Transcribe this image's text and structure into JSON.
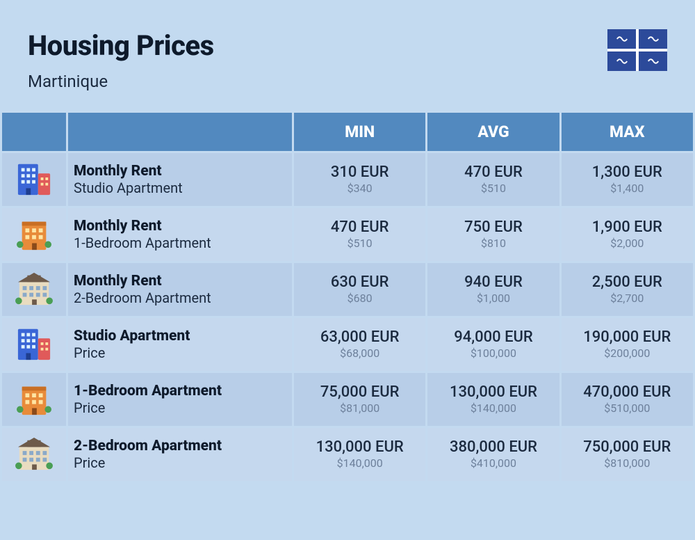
{
  "header": {
    "title": "Housing Prices",
    "subtitle": "Martinique"
  },
  "columns": [
    "MIN",
    "AVG",
    "MAX"
  ],
  "colors": {
    "page_bg": "#c3daf0",
    "header_bg": "#5289bf",
    "header_fg": "#ffffff",
    "row_bg": "#b8cee8",
    "row_alt_bg": "#c5d8ee",
    "text_primary": "#0e1a2b",
    "text_secondary": "#1b2a3f",
    "text_muted": "#6d809b",
    "flag_field": "#2c4a9a",
    "flag_cross": "#ffffff"
  },
  "typography": {
    "title_size_pt": 30,
    "subtitle_size_pt": 18,
    "col_header_size_pt": 17,
    "row_title_size_pt": 16,
    "value_size_pt": 17,
    "value_sub_size_pt": 12
  },
  "rows": [
    {
      "icon": "studio",
      "title": "Monthly Rent",
      "sub": "Studio Apartment",
      "min_eur": "310 EUR",
      "min_usd": "$340",
      "avg_eur": "470 EUR",
      "avg_usd": "$510",
      "max_eur": "1,300 EUR",
      "max_usd": "$1,400"
    },
    {
      "icon": "onebed",
      "title": "Monthly Rent",
      "sub": "1-Bedroom Apartment",
      "min_eur": "470 EUR",
      "min_usd": "$510",
      "avg_eur": "750 EUR",
      "avg_usd": "$810",
      "max_eur": "1,900 EUR",
      "max_usd": "$2,000"
    },
    {
      "icon": "twobed",
      "title": "Monthly Rent",
      "sub": "2-Bedroom Apartment",
      "min_eur": "630 EUR",
      "min_usd": "$680",
      "avg_eur": "940 EUR",
      "avg_usd": "$1,000",
      "max_eur": "2,500 EUR",
      "max_usd": "$2,700"
    },
    {
      "icon": "studio",
      "title": "Studio Apartment",
      "sub": "Price",
      "min_eur": "63,000 EUR",
      "min_usd": "$68,000",
      "avg_eur": "94,000 EUR",
      "avg_usd": "$100,000",
      "max_eur": "190,000 EUR",
      "max_usd": "$200,000"
    },
    {
      "icon": "onebed",
      "title": "1-Bedroom Apartment",
      "sub": "Price",
      "min_eur": "75,000 EUR",
      "min_usd": "$81,000",
      "avg_eur": "130,000 EUR",
      "avg_usd": "$140,000",
      "max_eur": "470,000 EUR",
      "max_usd": "$510,000"
    },
    {
      "icon": "twobed",
      "title": "2-Bedroom Apartment",
      "sub": "Price",
      "min_eur": "130,000 EUR",
      "min_usd": "$140,000",
      "avg_eur": "380,000 EUR",
      "avg_usd": "$410,000",
      "max_eur": "750,000 EUR",
      "max_usd": "$810,000"
    }
  ],
  "icons": {
    "studio": {
      "primary": "#3a66d6",
      "accent": "#e05a5a"
    },
    "onebed": {
      "primary": "#e88b3a",
      "accent": "#4a9e54"
    },
    "twobed": {
      "primary": "#e9dcc0",
      "roof": "#6d5a4a",
      "accent": "#4a9e54"
    }
  }
}
